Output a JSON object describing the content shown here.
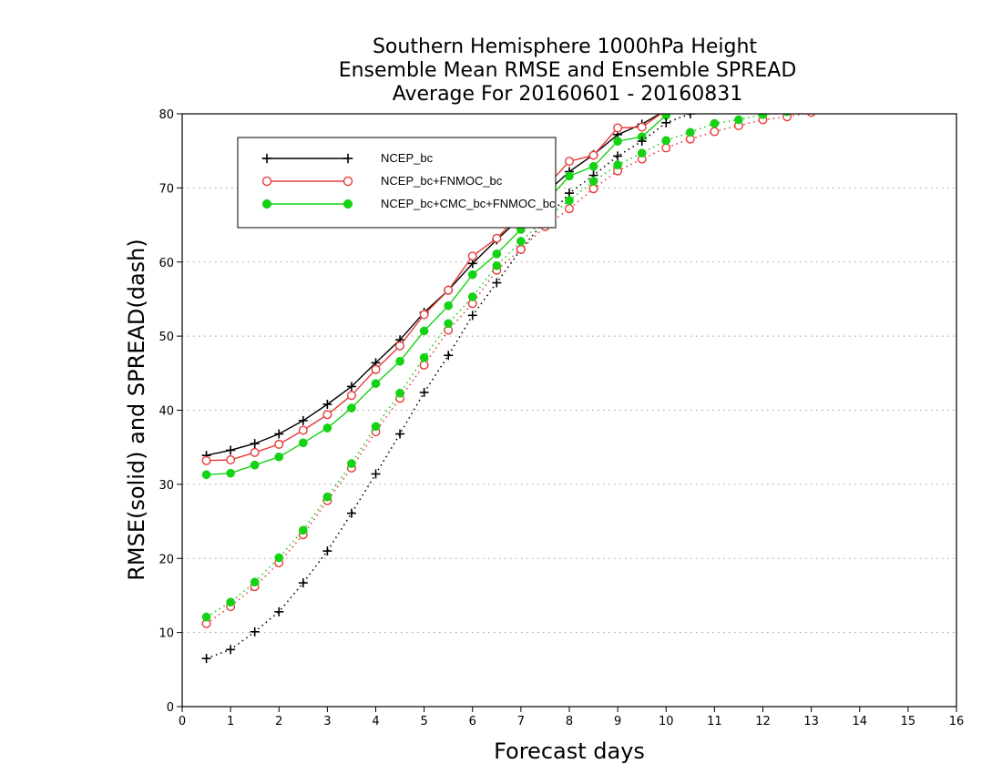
{
  "chart_data": {
    "type": "line",
    "title_lines": [
      "Southern Hemisphere 1000hPa Height",
      "Ensemble Mean RMSE and Ensemble SPREAD",
      "Average For 20160601 - 20160831"
    ],
    "xlabel": "Forecast days",
    "ylabel": "RMSE(solid) and SPREAD(dash)",
    "xlim": [
      0,
      16
    ],
    "ylim": [
      0,
      80
    ],
    "xticks": [
      "0",
      "1",
      "2",
      "3",
      "4",
      "5",
      "6",
      "7",
      "8",
      "9",
      "10",
      "11",
      "12",
      "13",
      "14",
      "15",
      "16"
    ],
    "yticks": [
      "0",
      "10",
      "20",
      "30",
      "40",
      "50",
      "60",
      "70",
      "80"
    ],
    "grid": "horizontal dotted",
    "legend_position": "top-left",
    "series": [
      {
        "name": "NCEP_bc",
        "metric": "RMSE",
        "style": "solid",
        "marker": "plus",
        "color": "#000000",
        "x": [
          0.5,
          1.0,
          1.5,
          2.0,
          2.5,
          3.0,
          3.5,
          4.0,
          4.5,
          5.0,
          5.5,
          6.0,
          6.5,
          7.0,
          7.5,
          8.0,
          8.5,
          9.0,
          9.5,
          10.0,
          10.5,
          11.0,
          11.5,
          12.0,
          12.5,
          13.0
        ],
        "values": [
          33.9,
          34.6,
          35.5,
          36.8,
          38.6,
          40.8,
          43.2,
          46.4,
          49.5,
          53.2,
          56.2,
          59.8,
          63.0,
          66.0,
          69.2,
          72.2,
          74.5,
          77.2,
          78.6,
          80.5,
          81.5,
          82.5,
          83.0,
          83.5,
          84.0,
          84.5
        ]
      },
      {
        "name": "NCEP_bc+FNMOC_bc",
        "metric": "RMSE",
        "style": "solid",
        "marker": "open-circle",
        "color": "#e83a3a",
        "x": [
          0.5,
          1.0,
          1.5,
          2.0,
          2.5,
          3.0,
          3.5,
          4.0,
          4.5,
          5.0,
          5.5,
          6.0,
          6.5,
          7.0,
          7.5,
          8.0,
          8.5,
          9.0,
          9.5,
          10.0,
          10.5,
          11.0,
          11.5,
          12.0,
          12.5,
          13.0
        ],
        "values": [
          33.2,
          33.3,
          34.3,
          35.4,
          37.3,
          39.4,
          42.0,
          45.5,
          48.7,
          52.9,
          56.2,
          60.8,
          63.2,
          66.5,
          70.0,
          73.6,
          74.4,
          78.1,
          78.2,
          80.5,
          81.5,
          82.5,
          83.0,
          83.5,
          84.0,
          84.5
        ]
      },
      {
        "name": "NCEP_bc+CMC_bc+FNMOC_bc",
        "metric": "RMSE",
        "style": "solid",
        "marker": "filled-circle",
        "color": "#14d214",
        "x": [
          0.5,
          1.0,
          1.5,
          2.0,
          2.5,
          3.0,
          3.5,
          4.0,
          4.5,
          5.0,
          5.5,
          6.0,
          6.5,
          7.0,
          7.5,
          8.0,
          8.5,
          9.0,
          9.5,
          10.0,
          10.5,
          11.0,
          11.5,
          12.0,
          12.5,
          13.0
        ],
        "values": [
          31.3,
          31.5,
          32.6,
          33.7,
          35.6,
          37.6,
          40.3,
          43.6,
          46.6,
          50.7,
          54.1,
          58.3,
          61.1,
          64.4,
          68.0,
          71.6,
          72.9,
          76.3,
          76.9,
          79.8,
          81.0,
          82.0,
          82.5,
          83.0,
          83.5,
          84.0
        ]
      },
      {
        "name": "NCEP_bc",
        "metric": "SPREAD",
        "style": "dotted",
        "marker": "plus",
        "color": "#000000",
        "x": [
          0.5,
          1.0,
          1.5,
          2.0,
          2.5,
          3.0,
          3.5,
          4.0,
          4.5,
          5.0,
          5.5,
          6.0,
          6.5,
          7.0,
          7.5,
          8.0,
          8.5,
          9.0,
          9.5,
          10.0,
          10.5,
          11.0,
          11.5,
          12.0,
          12.5,
          13.0
        ],
        "values": [
          6.5,
          7.7,
          10.1,
          12.8,
          16.7,
          21.0,
          26.1,
          31.4,
          36.8,
          42.4,
          47.4,
          52.8,
          57.2,
          61.7,
          65.6,
          69.3,
          71.7,
          74.3,
          76.3,
          78.8,
          80.0,
          80.8,
          81.5,
          82.0,
          82.5,
          83.0
        ]
      },
      {
        "name": "NCEP_bc+FNMOC_bc",
        "metric": "SPREAD",
        "style": "dotted",
        "marker": "open-circle",
        "color": "#e83a3a",
        "x": [
          0.5,
          1.0,
          1.5,
          2.0,
          2.5,
          3.0,
          3.5,
          4.0,
          4.5,
          5.0,
          5.5,
          6.0,
          6.5,
          7.0,
          7.5,
          8.0,
          8.5,
          9.0,
          9.5,
          10.0,
          10.5,
          11.0,
          11.5,
          12.0,
          12.5,
          13.0
        ],
        "values": [
          11.2,
          13.5,
          16.2,
          19.4,
          23.2,
          27.8,
          32.2,
          37.1,
          41.6,
          46.1,
          50.8,
          54.4,
          58.9,
          61.7,
          64.8,
          67.2,
          69.9,
          72.3,
          73.9,
          75.4,
          76.6,
          77.6,
          78.4,
          79.2,
          79.6,
          80.2
        ]
      },
      {
        "name": "NCEP_bc+CMC_bc+FNMOC_bc",
        "metric": "SPREAD",
        "style": "dotted",
        "marker": "filled-circle",
        "color": "#14d214",
        "x": [
          0.5,
          1.0,
          1.5,
          2.0,
          2.5,
          3.0,
          3.5,
          4.0,
          4.5,
          5.0,
          5.5,
          6.0,
          6.5,
          7.0,
          7.5,
          8.0,
          8.5,
          9.0,
          9.5,
          10.0,
          10.5,
          11.0,
          11.5,
          12.0,
          12.5,
          13.0
        ],
        "values": [
          12.1,
          14.1,
          16.8,
          20.1,
          23.8,
          28.3,
          32.8,
          37.8,
          42.3,
          47.1,
          51.7,
          55.3,
          59.5,
          62.8,
          65.8,
          68.3,
          70.9,
          73.1,
          74.7,
          76.4,
          77.5,
          78.7,
          79.2,
          79.9,
          80.3,
          80.8
        ]
      }
    ],
    "legend": [
      {
        "label": "NCEP_bc",
        "marker": "plus",
        "color": "#000000"
      },
      {
        "label": "NCEP_bc+FNMOC_bc",
        "marker": "open-circle",
        "color": "#e83a3a"
      },
      {
        "label": "NCEP_bc+CMC_bc+FNMOC_bc",
        "marker": "filled-circle",
        "color": "#14d214"
      }
    ]
  }
}
